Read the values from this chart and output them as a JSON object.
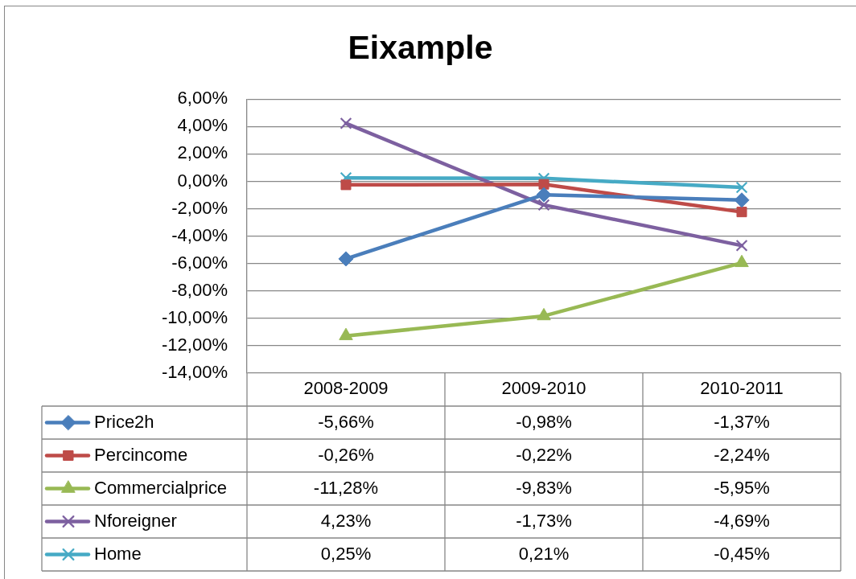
{
  "chart_data": {
    "type": "line",
    "title": "Eixample",
    "categories": [
      "2008-2009",
      "2009-2010",
      "2010-2011"
    ],
    "series": [
      {
        "name": "Price2h",
        "color": "#4a7ebb",
        "marker": "diamond",
        "values": [
          -5.66,
          -0.98,
          -1.37
        ],
        "value_labels": [
          "-5,66%",
          "-0,98%",
          "-1,37%"
        ]
      },
      {
        "name": "Percincome",
        "color": "#be4b48",
        "marker": "square",
        "values": [
          -0.26,
          -0.22,
          -2.24
        ],
        "value_labels": [
          "-0,26%",
          "-0,22%",
          "-2,24%"
        ]
      },
      {
        "name": "Commercialprice",
        "color": "#98b954",
        "marker": "triangle",
        "values": [
          -11.28,
          -9.83,
          -5.95
        ],
        "value_labels": [
          "-11,28%",
          "-9,83%",
          "-5,95%"
        ]
      },
      {
        "name": "Nforeigner",
        "color": "#7d60a0",
        "marker": "cross",
        "values": [
          4.23,
          -1.73,
          -4.69
        ],
        "value_labels": [
          "4,23%",
          "-1,73%",
          "-4,69%"
        ]
      },
      {
        "name": "Home",
        "color": "#46aac5",
        "marker": "cross",
        "values": [
          0.25,
          0.21,
          -0.45
        ],
        "value_labels": [
          "0,25%",
          "0,21%",
          "-0,45%"
        ]
      }
    ],
    "ylim": [
      -14,
      6
    ],
    "yticks": [
      {
        "value": 6,
        "label": "6,00%"
      },
      {
        "value": 4,
        "label": "4,00%"
      },
      {
        "value": 2,
        "label": "2,00%"
      },
      {
        "value": 0,
        "label": "0,00%"
      },
      {
        "value": -2,
        "label": "-2,00%"
      },
      {
        "value": -4,
        "label": "-4,00%"
      },
      {
        "value": -6,
        "label": "-6,00%"
      },
      {
        "value": -8,
        "label": "-8,00%"
      },
      {
        "value": -10,
        "label": "-10,00%"
      },
      {
        "value": -12,
        "label": "-12,00%"
      },
      {
        "value": -14,
        "label": "-14,00%"
      }
    ],
    "grid": "y",
    "legend": "bottom"
  }
}
